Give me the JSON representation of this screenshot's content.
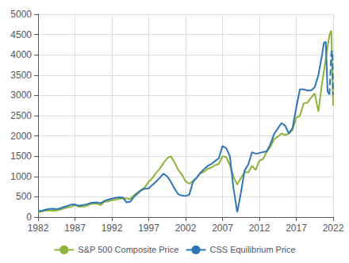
{
  "chart_data": {
    "type": "line",
    "xlim": [
      1982,
      2022
    ],
    "ylim": [
      0,
      5000
    ],
    "xticks": [
      1982,
      1987,
      1992,
      1997,
      2002,
      2007,
      2012,
      2017,
      2022
    ],
    "yticks": [
      0,
      500,
      1000,
      1500,
      2000,
      2500,
      3000,
      3500,
      4000,
      4500,
      5000
    ],
    "grid": true,
    "legend": "bottom",
    "series": [
      {
        "name": "S&P 500 Composite Price",
        "color": "#8db33a",
        "line_style": "solid",
        "x": [
          1982.0,
          1982.5,
          1983.0,
          1983.5,
          1984.0,
          1984.5,
          1985.0,
          1985.5,
          1986.0,
          1986.5,
          1987.0,
          1987.5,
          1988.0,
          1988.5,
          1989.0,
          1989.5,
          1990.0,
          1990.5,
          1991.0,
          1991.5,
          1992.0,
          1992.5,
          1993.0,
          1993.5,
          1994.0,
          1994.5,
          1995.0,
          1995.5,
          1996.0,
          1996.5,
          1997.0,
          1997.5,
          1998.0,
          1998.5,
          1999.0,
          1999.5,
          2000.0,
          2000.5,
          2001.0,
          2001.5,
          2002.0,
          2002.5,
          2003.0,
          2003.5,
          2004.0,
          2004.5,
          2005.0,
          2005.5,
          2006.0,
          2006.5,
          2007.0,
          2007.5,
          2008.0,
          2008.5,
          2009.0,
          2009.5,
          2010.0,
          2010.5,
          2011.0,
          2011.5,
          2012.0,
          2012.5,
          2013.0,
          2013.5,
          2014.0,
          2014.5,
          2015.0,
          2015.5,
          2016.0,
          2016.5,
          2017.0,
          2017.5,
          2018.0,
          2018.5,
          2019.0,
          2019.5,
          2020.0,
          2020.5,
          2021.0,
          2021.25,
          2021.5,
          2021.75,
          2022.0
        ],
        "values": [
          118,
          135,
          160,
          165,
          155,
          162,
          185,
          210,
          240,
          255,
          295,
          255,
          260,
          270,
          310,
          335,
          325,
          295,
          375,
          385,
          415,
          425,
          450,
          460,
          460,
          450,
          540,
          610,
          670,
          740,
          875,
          960,
          1090,
          1190,
          1330,
          1450,
          1500,
          1350,
          1160,
          1050,
          880,
          820,
          895,
          970,
          1080,
          1115,
          1190,
          1220,
          1280,
          1310,
          1500,
          1480,
          1280,
          1000,
          800,
          960,
          1115,
          1100,
          1260,
          1160,
          1390,
          1430,
          1610,
          1730,
          1920,
          1980,
          2060,
          2020,
          2060,
          2150,
          2450,
          2500,
          2800,
          2820,
          2940,
          3050,
          2600,
          3300,
          3900,
          4200,
          4480,
          4600,
          2750
        ]
      },
      {
        "name": "CSS Equilibrium Price",
        "color": "#2e75b6",
        "line_style": "solid",
        "x": [
          1982.0,
          1982.5,
          1983.0,
          1983.5,
          1984.0,
          1984.5,
          1985.0,
          1985.5,
          1986.0,
          1986.5,
          1987.0,
          1987.5,
          1988.0,
          1988.5,
          1989.0,
          1989.5,
          1990.0,
          1990.5,
          1991.0,
          1991.5,
          1992.0,
          1992.5,
          1993.0,
          1993.5,
          1994.0,
          1994.5,
          1995.0,
          1995.5,
          1996.0,
          1996.5,
          1997.0,
          1997.5,
          1998.0,
          1998.5,
          1999.0,
          1999.5,
          2000.0,
          2000.5,
          2001.0,
          2001.5,
          2002.0,
          2002.5,
          2003.0,
          2003.5,
          2004.0,
          2004.5,
          2005.0,
          2005.5,
          2006.0,
          2006.5,
          2007.0,
          2007.5,
          2008.0,
          2008.5,
          2009.0,
          2009.5,
          2010.0,
          2010.5,
          2011.0,
          2011.5,
          2012.0,
          2012.5,
          2013.0,
          2013.5,
          2014.0,
          2014.5,
          2015.0,
          2015.5,
          2016.0,
          2016.5,
          2017.0,
          2017.5,
          2018.0,
          2018.5,
          2019.0,
          2019.5,
          2020.0,
          2020.5,
          2020.75,
          2021.0,
          2021.25,
          2021.5
        ],
        "values": [
          140,
          155,
          180,
          200,
          205,
          195,
          215,
          250,
          275,
          310,
          310,
          280,
          295,
          310,
          340,
          355,
          360,
          340,
          400,
          430,
          455,
          475,
          490,
          480,
          360,
          380,
          500,
          580,
          665,
          700,
          710,
          790,
          875,
          970,
          1070,
          1000,
          870,
          700,
          560,
          530,
          520,
          550,
          870,
          970,
          1090,
          1180,
          1260,
          1310,
          1380,
          1450,
          1750,
          1700,
          1500,
          700,
          120,
          600,
          1150,
          1300,
          1600,
          1560,
          1580,
          1600,
          1620,
          1800,
          2050,
          2180,
          2320,
          2250,
          2060,
          2200,
          2700,
          3150,
          3150,
          3120,
          3120,
          3200,
          3500,
          4000,
          4300,
          4320,
          3100,
          3020
        ]
      },
      {
        "name": "CSS Equilibrium Price",
        "color": "#2e75b6",
        "line_style": "dashed",
        "x": [
          2021.5,
          2021.75,
          2021.9,
          2022.0
        ],
        "values": [
          3020,
          4050,
          4100,
          3020
        ]
      }
    ]
  }
}
